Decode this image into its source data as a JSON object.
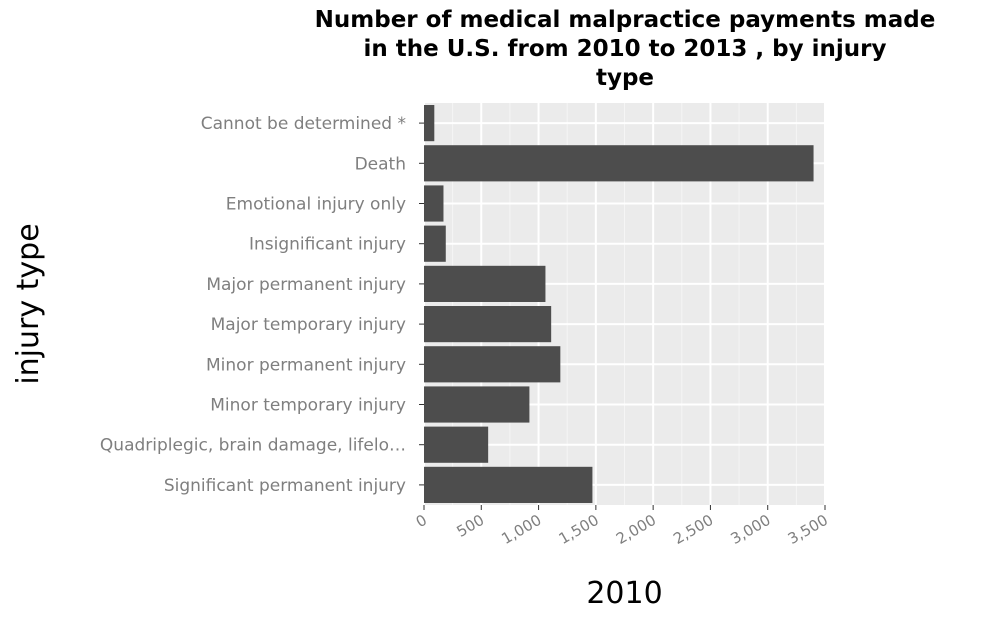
{
  "chart_data": {
    "type": "bar",
    "orientation": "horizontal",
    "title": "Number of medical malpractice payments made in the U.S. from 2010 to 2013 , by injury type",
    "title_lines": [
      "Number of medical malpractice payments made",
      "in the U.S. from 2010 to 2013 , by injury",
      "type"
    ],
    "xlabel": "2010",
    "ylabel": "injury type",
    "xlim": [
      0,
      3500
    ],
    "xticks": [
      0,
      500,
      1000,
      1500,
      2000,
      2500,
      3000,
      3500
    ],
    "xtick_labels": [
      "0",
      "500",
      "1,000",
      "1,500",
      "2,000",
      "2,500",
      "3,000",
      "3,500"
    ],
    "categories": [
      "Cannot be determined *",
      "Death",
      "Emotional injury only",
      "Insignificant injury",
      "Major permanent injury",
      "Major temporary injury",
      "Minor permanent injury",
      "Minor temporary injury",
      "Quadriplegic, brain damage, lifelo…",
      "Significant permanent injury"
    ],
    "values": [
      90,
      3400,
      170,
      190,
      1060,
      1110,
      1190,
      920,
      560,
      1470
    ],
    "grid": true,
    "bar_color": "#4d4d4d",
    "panel_color": "#ebebeb"
  }
}
